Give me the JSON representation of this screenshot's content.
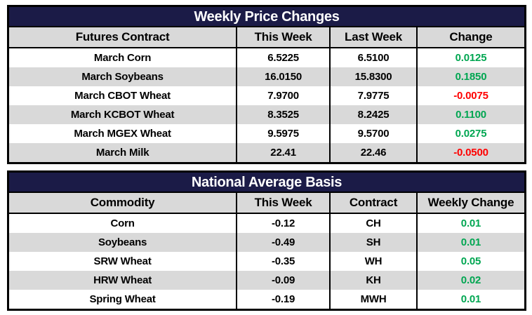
{
  "colors": {
    "title_bg": "#1b1b47",
    "title_text": "#ffffff",
    "header_bg": "#d9d9d9",
    "row_bg": "#ffffff",
    "row_alt_bg": "#d9d9d9",
    "border": "#000000",
    "positive": "#00a651",
    "negative": "#ff0000",
    "text": "#000000"
  },
  "chart_data": [
    {
      "type": "table",
      "title": "Weekly Price Changes",
      "columns": [
        {
          "label": "Futures Contract",
          "type": "text"
        },
        {
          "label": "This Week",
          "type": "number"
        },
        {
          "label": "Last Week",
          "type": "number"
        },
        {
          "label": "Change",
          "type": "change"
        }
      ],
      "rows": [
        [
          "March Corn",
          "6.5225",
          "6.5100",
          "0.0125"
        ],
        [
          "March Soybeans",
          "16.0150",
          "15.8300",
          "0.1850"
        ],
        [
          "March CBOT Wheat",
          "7.9700",
          "7.9775",
          "-0.0075"
        ],
        [
          "March KCBOT Wheat",
          "8.3525",
          "8.2425",
          "0.1100"
        ],
        [
          "March MGEX Wheat",
          "9.5975",
          "9.5700",
          "0.0275"
        ],
        [
          "March Milk",
          "22.41",
          "22.46",
          "-0.0500"
        ]
      ]
    },
    {
      "type": "table",
      "title": "National Average Basis",
      "columns": [
        {
          "label": "Commodity",
          "type": "text"
        },
        {
          "label": "This Week",
          "type": "number"
        },
        {
          "label": "Contract",
          "type": "text"
        },
        {
          "label": "Weekly Change",
          "type": "change"
        }
      ],
      "rows": [
        [
          "Corn",
          "-0.12",
          "CH",
          "0.01"
        ],
        [
          "Soybeans",
          "-0.49",
          "SH",
          "0.01"
        ],
        [
          "SRW Wheat",
          "-0.35",
          "WH",
          "0.05"
        ],
        [
          "HRW Wheat",
          "-0.09",
          "KH",
          "0.02"
        ],
        [
          "Spring Wheat",
          "-0.19",
          "MWH",
          "0.01"
        ]
      ]
    }
  ]
}
